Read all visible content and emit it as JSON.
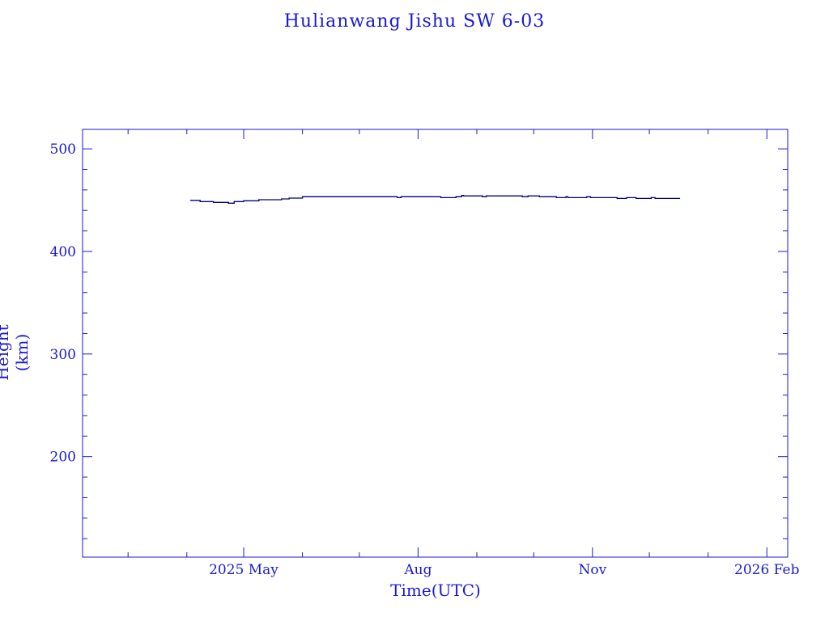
{
  "chart_data": {
    "type": "line",
    "title": "Hulianwang Jishu SW 6-03",
    "xlabel": "Time(UTC)",
    "ylabel": "Height (km)",
    "xlim": [
      "2025-02-05",
      "2026-02-12"
    ],
    "ylim": [
      102,
      519
    ],
    "xticks": [
      {
        "date": "2025-05-01",
        "label": "2025 May"
      },
      {
        "date": "2025-08-01",
        "label": "Aug"
      },
      {
        "date": "2025-11-01",
        "label": "Nov"
      },
      {
        "date": "2026-02-01",
        "label": "2026 Feb"
      }
    ],
    "x_minor_ticks": [
      "2025-03-01",
      "2025-04-01",
      "2025-06-01",
      "2025-07-01",
      "2025-09-01",
      "2025-10-01",
      "2025-12-01",
      "2026-01-01"
    ],
    "yticks": [
      200,
      300,
      400,
      500
    ],
    "y_minor_step": 20,
    "grid": false,
    "color": "#000080",
    "axis_color": "#1a1ad0",
    "series": [
      {
        "name": "Height",
        "step": true,
        "points": [
          [
            "2025-04-03",
            449.8
          ],
          [
            "2025-04-08",
            448.6
          ],
          [
            "2025-04-15",
            447.8
          ],
          [
            "2025-04-23",
            447.0
          ],
          [
            "2025-04-26",
            448.6
          ],
          [
            "2025-05-01",
            449.4
          ],
          [
            "2025-05-09",
            450.4
          ],
          [
            "2025-05-21",
            451.2
          ],
          [
            "2025-05-25",
            452.0
          ],
          [
            "2025-06-01",
            453.3
          ],
          [
            "2025-07-21",
            452.5
          ],
          [
            "2025-07-23",
            453.3
          ],
          [
            "2025-08-13",
            452.5
          ],
          [
            "2025-08-21",
            453.3
          ],
          [
            "2025-08-24",
            454.6
          ],
          [
            "2025-08-25",
            454.1
          ],
          [
            "2025-09-04",
            453.3
          ],
          [
            "2025-09-06",
            454.1
          ],
          [
            "2025-09-25",
            453.3
          ],
          [
            "2025-09-28",
            454.1
          ],
          [
            "2025-10-04",
            453.3
          ],
          [
            "2025-10-13",
            452.5
          ],
          [
            "2025-10-18",
            453.3
          ],
          [
            "2025-10-19",
            452.5
          ],
          [
            "2025-10-29",
            453.3
          ],
          [
            "2025-10-31",
            452.5
          ],
          [
            "2025-11-14",
            451.7
          ],
          [
            "2025-11-19",
            452.5
          ],
          [
            "2025-11-24",
            451.7
          ],
          [
            "2025-12-02",
            452.5
          ],
          [
            "2025-12-04",
            451.7
          ],
          [
            "2025-12-17",
            451.7
          ]
        ]
      }
    ]
  }
}
